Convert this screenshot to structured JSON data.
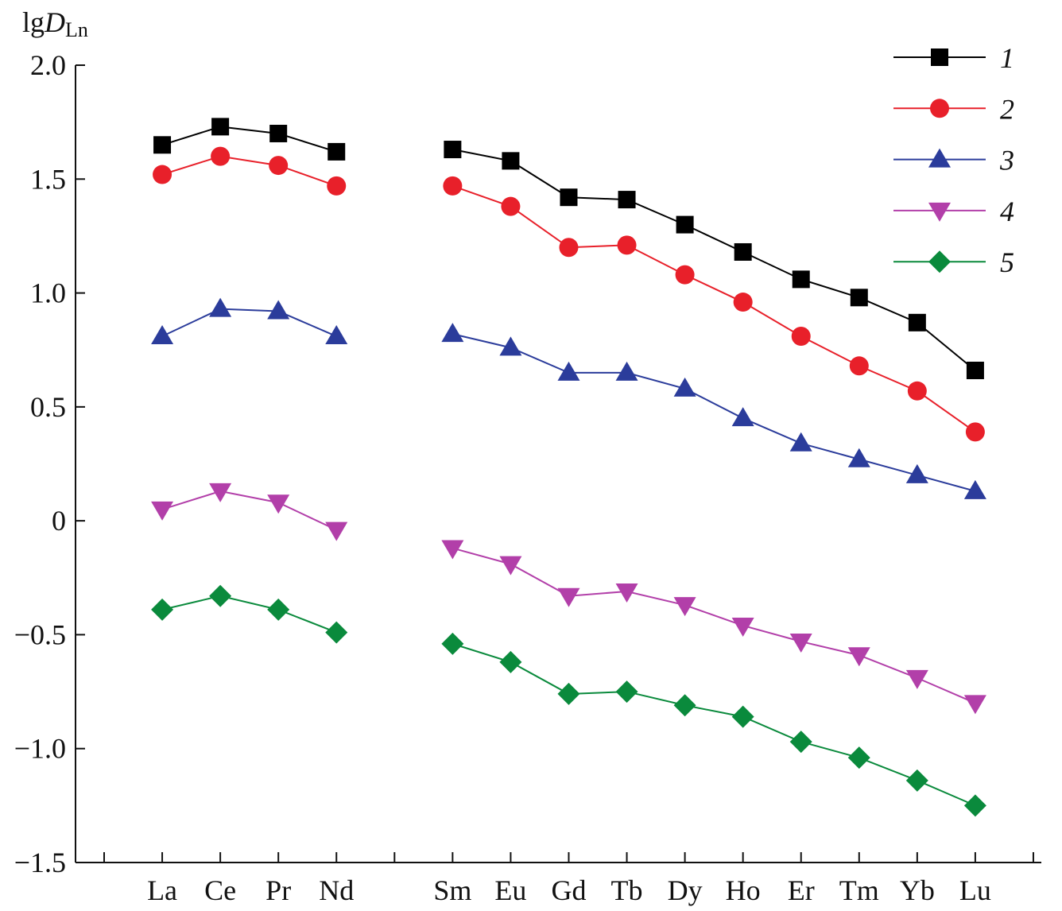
{
  "chart_data": {
    "type": "line",
    "ylabel": {
      "prefix": "lg",
      "main": "D",
      "sub": "Ln"
    },
    "ylim": [
      -1.5,
      2.0
    ],
    "yticks": [
      2.0,
      1.5,
      1.0,
      0.5,
      0,
      -0.5,
      -1.0,
      -1.5
    ],
    "ytick_labels": [
      "2.0",
      "1.5",
      "1.0",
      "0.5",
      "0",
      "−0.5",
      "−1.0",
      "−1.5"
    ],
    "categories": [
      "La",
      "Ce",
      "Pr",
      "Nd",
      "Sm",
      "Eu",
      "Gd",
      "Tb",
      "Dy",
      "Ho",
      "Er",
      "Tm",
      "Yb",
      "Lu"
    ],
    "grid": false,
    "legend_placement": "top-right",
    "series": [
      {
        "name": "1",
        "marker": "square",
        "color": "#000000",
        "values": [
          1.65,
          1.73,
          1.7,
          1.62,
          1.63,
          1.58,
          1.42,
          1.41,
          1.3,
          1.18,
          1.06,
          0.98,
          0.87,
          0.66
        ]
      },
      {
        "name": "2",
        "marker": "circle",
        "color": "#e8202a",
        "values": [
          1.52,
          1.6,
          1.56,
          1.47,
          1.47,
          1.38,
          1.2,
          1.21,
          1.08,
          0.96,
          0.81,
          0.68,
          0.57,
          0.39
        ]
      },
      {
        "name": "3",
        "marker": "triangle-up",
        "color": "#2b3c9b",
        "values": [
          0.81,
          0.93,
          0.92,
          0.81,
          0.82,
          0.76,
          0.65,
          0.65,
          0.58,
          0.45,
          0.34,
          0.27,
          0.2,
          0.13
        ]
      },
      {
        "name": "4",
        "marker": "triangle-down",
        "color": "#b23fa9",
        "values": [
          0.05,
          0.13,
          0.08,
          -0.04,
          -0.12,
          -0.19,
          -0.33,
          -0.31,
          -0.37,
          -0.46,
          -0.53,
          -0.59,
          -0.69,
          -0.8
        ]
      },
      {
        "name": "5",
        "marker": "diamond",
        "color": "#0a8a3c",
        "values": [
          -0.39,
          -0.33,
          -0.39,
          -0.49,
          -0.54,
          -0.62,
          -0.76,
          -0.75,
          -0.81,
          -0.86,
          -0.97,
          -1.04,
          -1.14,
          -1.25
        ]
      }
    ]
  }
}
